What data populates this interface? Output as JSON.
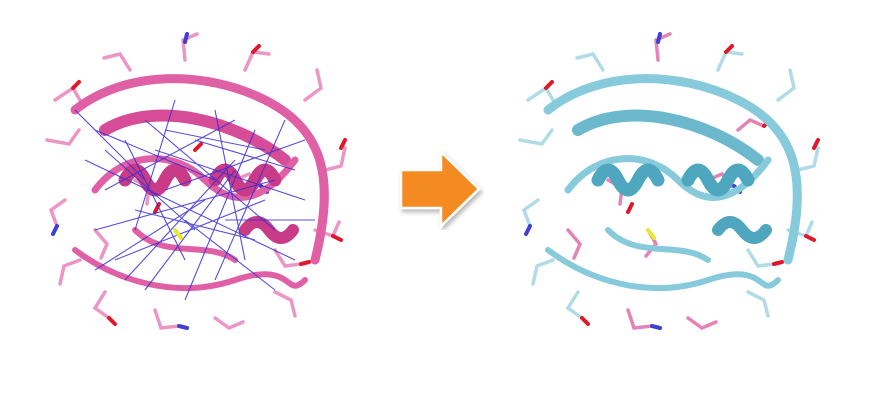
{
  "figure": {
    "left_structure": {
      "icon": "protein-structure-with-restraints",
      "backbone_color": "#e060a6",
      "restraint_color": "#3b2fd6"
    },
    "right_structure": {
      "icon": "protein-structure-refined",
      "backbone_color": "#86cadb"
    },
    "arrow": {
      "icon": "right-arrow-icon",
      "color": "#f48a22"
    },
    "atom_colors": {
      "oxygen": "#e0182a",
      "nitrogen": "#3f3fd6",
      "sulfur": "#e8e830"
    }
  }
}
